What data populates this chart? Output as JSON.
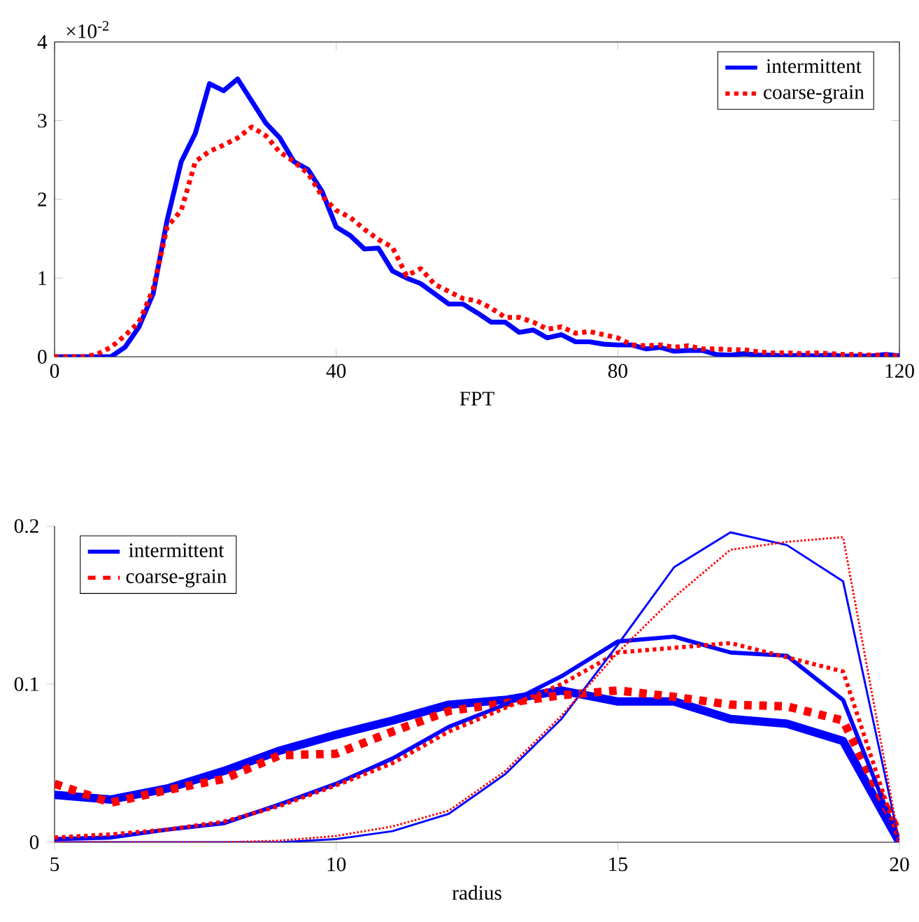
{
  "chart_data": [
    {
      "type": "line",
      "xlabel": "FPT",
      "annotations": [
        "×10$^{-2}$"
      ],
      "legend": "top right",
      "marker": "none",
      "x": [
        0,
        2,
        4,
        6,
        8,
        10,
        12,
        14,
        16,
        18,
        20,
        22,
        24,
        26,
        28,
        30,
        32,
        34,
        36,
        38,
        40,
        42,
        44,
        46,
        48,
        50,
        52,
        54,
        56,
        58,
        60,
        62,
        64,
        66,
        68,
        70,
        72,
        74,
        76,
        78,
        80,
        82,
        84,
        86,
        88,
        90,
        92,
        94,
        96,
        98,
        100,
        102,
        104,
        106,
        108,
        110,
        112,
        114,
        116,
        118,
        120
      ],
      "xlim": [
        0,
        120
      ],
      "xticks": [
        0,
        40,
        80,
        120
      ],
      "ylim": [
        0,
        4
      ],
      "yticks": [
        0,
        1,
        2,
        3,
        4
      ],
      "series": [
        {
          "name": "intermittent",
          "color": "#0000ff",
          "line_style": "solid",
          "values": [
            0,
            0,
            0,
            0,
            0,
            0.12,
            0.38,
            0.8,
            1.74,
            2.48,
            2.84,
            3.47,
            3.38,
            3.53,
            3.25,
            2.97,
            2.78,
            2.48,
            2.38,
            2.1,
            1.65,
            1.54,
            1.37,
            1.38,
            1.09,
            1,
            0.93,
            0.8,
            0.67,
            0.67,
            0.56,
            0.44,
            0.44,
            0.31,
            0.34,
            0.24,
            0.28,
            0.19,
            0.19,
            0.16,
            0.15,
            0.15,
            0.1,
            0.12,
            0.07,
            0.08,
            0.08,
            0.03,
            0.02,
            0.04,
            0.02,
            0.02,
            0.01,
            0.02,
            0.01,
            0.02,
            0.01,
            0.01,
            0.01,
            0.03,
            0.01
          ]
        },
        {
          "name": "coarse-grain",
          "color": "#ff0000",
          "line_style": "dotted",
          "values": [
            0,
            0,
            0,
            0.03,
            0.12,
            0.27,
            0.44,
            0.86,
            1.65,
            1.86,
            2.48,
            2.61,
            2.69,
            2.78,
            2.92,
            2.81,
            2.6,
            2.48,
            2.33,
            2.04,
            1.86,
            1.77,
            1.62,
            1.49,
            1.39,
            1.03,
            1.12,
            0.92,
            0.83,
            0.74,
            0.71,
            0.62,
            0.5,
            0.5,
            0.44,
            0.35,
            0.38,
            0.3,
            0.32,
            0.28,
            0.24,
            0.15,
            0.14,
            0.15,
            0.12,
            0.14,
            0.1,
            0.1,
            0.09,
            0.09,
            0.06,
            0.05,
            0.05,
            0.04,
            0.05,
            0.04,
            0.03,
            0.03,
            0.02,
            0.02,
            0.01
          ]
        }
      ]
    },
    {
      "type": "line",
      "xlabel": "radius",
      "legend": "top left",
      "marker": "none",
      "x": [
        5,
        6,
        7,
        8,
        9,
        10,
        11,
        12,
        13,
        14,
        15,
        16,
        17,
        18,
        19,
        20
      ],
      "xlim": [
        5,
        20
      ],
      "xticks": [
        5,
        10,
        15,
        20
      ],
      "ylim": [
        0,
        0.2
      ],
      "yticks": [
        0,
        0.1,
        0.2
      ],
      "series": [
        {
          "name": "intermittent",
          "color": "#0000ff",
          "line_style": "solid",
          "values": [
            0.03,
            0.027,
            0.034,
            0.045,
            0.058,
            0.068,
            0.077,
            0.087,
            0.09,
            0.096,
            0.089,
            0.089,
            0.078,
            0.075,
            0.064,
            0
          ]
        },
        {
          "name": "coarse-grain",
          "color": "#ff0000",
          "line_style": "dotted",
          "values": [
            0.037,
            0.025,
            0.033,
            0.04,
            0.055,
            0.056,
            0.07,
            0.083,
            0.088,
            0.093,
            0.096,
            0.092,
            0.087,
            0.086,
            0.077,
            0.005
          ]
        },
        {
          "color": "#0000ff",
          "line_style": "solid",
          "values": [
            0.002,
            0.003,
            0.008,
            0.012,
            0.024,
            0.037,
            0.053,
            0.073,
            0.087,
            0.105,
            0.127,
            0.13,
            0.12,
            0.118,
            0.09,
            0
          ]
        },
        {
          "color": "#ff0000",
          "line_style": "dotted",
          "values": [
            0.003,
            0.005,
            0.008,
            0.013,
            0.023,
            0.036,
            0.05,
            0.07,
            0.085,
            0.1,
            0.12,
            0.123,
            0.126,
            0.117,
            0.108,
            0
          ]
        },
        {
          "color": "#0000ff",
          "line_style": "solid",
          "values": [
            0,
            0,
            0,
            0,
            0,
            0.002,
            0.007,
            0.018,
            0.043,
            0.078,
            0.125,
            0.174,
            0.196,
            0.188,
            0.165,
            0
          ]
        },
        {
          "color": "#ff0000",
          "line_style": "dotted",
          "values": [
            0,
            0,
            0,
            0,
            0.001,
            0.004,
            0.01,
            0.02,
            0.045,
            0.08,
            0.12,
            0.155,
            0.185,
            0.19,
            0.193,
            0
          ]
        }
      ]
    }
  ]
}
